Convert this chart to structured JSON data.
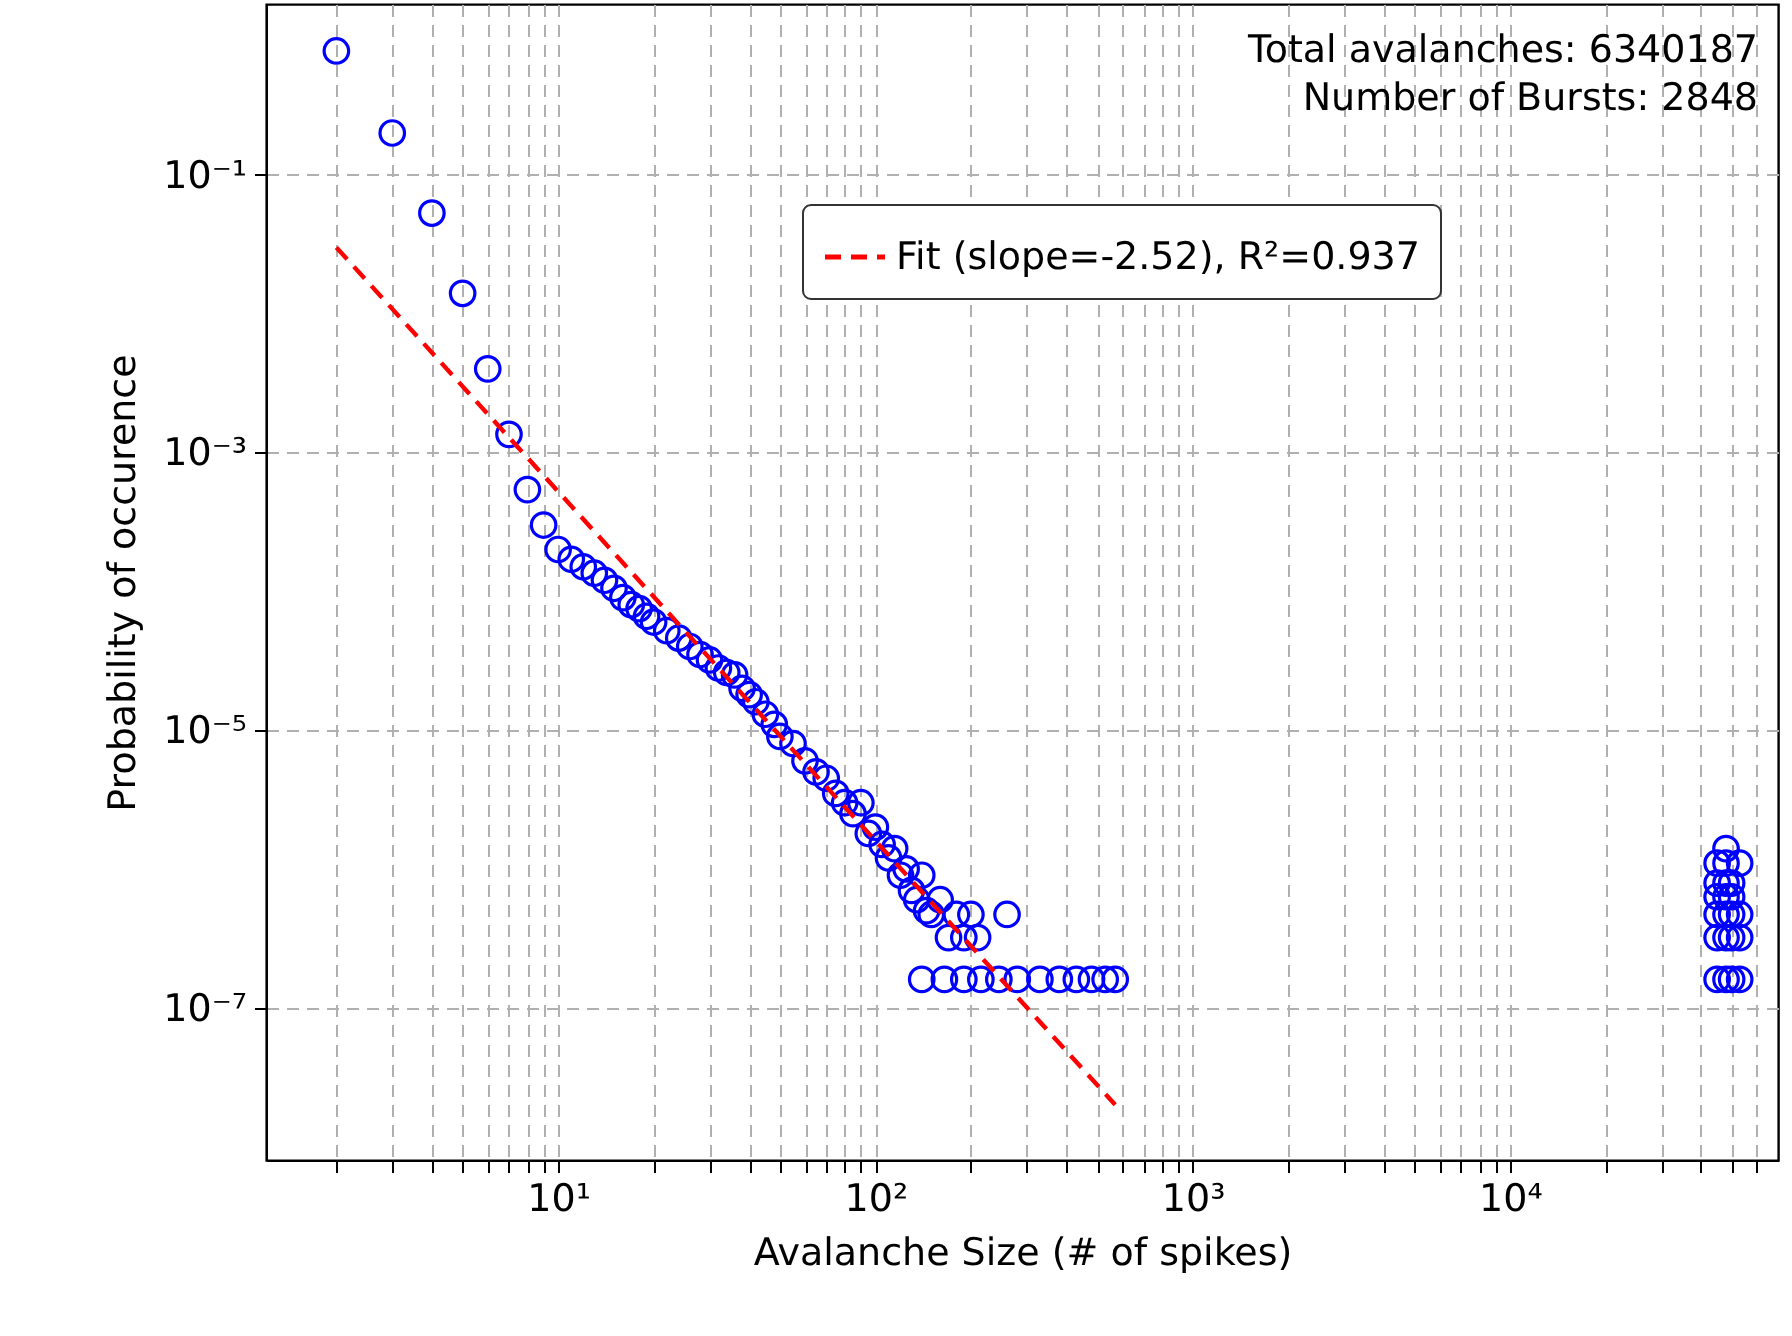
{
  "chart_data": {
    "type": "scatter",
    "xlabel": "Avalanche Size (# of spikes)",
    "ylabel": "Probability of occurence",
    "annotations": [
      "Total avalanches: 6340187",
      "Number of Bursts: 2848"
    ],
    "log": "xy",
    "grid": true,
    "legend": "top right",
    "marker": "circle",
    "xlim": [
      1.2,
      70000
    ],
    "ylim": [
      8e-09,
      1.7
    ],
    "xticks": [
      {
        "value": 10,
        "label": "10¹"
      },
      {
        "value": 100,
        "label": "10²"
      },
      {
        "value": 1000,
        "label": "10³"
      },
      {
        "value": 10000,
        "label": "10⁴"
      }
    ],
    "yticks": [
      {
        "value": 1e-07,
        "label": "10⁻⁷"
      },
      {
        "value": 1e-05,
        "label": "10⁻⁵"
      },
      {
        "value": 0.001,
        "label": "10⁻³"
      },
      {
        "value": 0.1,
        "label": "10⁻¹"
      }
    ],
    "series": [
      {
        "color": "#0000ff",
        "x": [
          2,
          3,
          4,
          5,
          6,
          7,
          8,
          9,
          10,
          11,
          12,
          13,
          14,
          15,
          16,
          17,
          18,
          19,
          20,
          22,
          24,
          26,
          28,
          30,
          32,
          34,
          36,
          38,
          40,
          42,
          45,
          48,
          50,
          55,
          60,
          65,
          70,
          75,
          80,
          85,
          90,
          95,
          100,
          105,
          110,
          115,
          120,
          125,
          130,
          135,
          140,
          145,
          150,
          160,
          170,
          180,
          190,
          200,
          210,
          260,
          140,
          165,
          190,
          215,
          245,
          280,
          330,
          380,
          430,
          480,
          530,
          570,
          45000,
          45000,
          45000,
          45000,
          45000,
          45000,
          48000,
          48000,
          48000,
          48000,
          48000,
          48000,
          48000,
          50000,
          50000,
          50000,
          50000,
          50000,
          53000,
          53000,
          53000,
          53000
        ],
        "values": [
          0.78,
          0.2,
          0.053,
          0.014,
          0.004,
          0.00135,
          0.00054,
          0.0003,
          0.0002,
          0.00017,
          0.00015,
          0.000135,
          0.00012,
          0.000105,
          9e-05,
          8e-05,
          7.5e-05,
          6.6e-05,
          6e-05,
          5.2e-05,
          4.6e-05,
          4e-05,
          3.5e-05,
          3.2e-05,
          2.8e-05,
          2.6e-05,
          2.5e-05,
          2e-05,
          1.8e-05,
          1.6e-05,
          1.3e-05,
          1.1e-05,
          9e-06,
          8e-06,
          6e-06,
          5e-06,
          4.5e-06,
          3.5e-06,
          3e-06,
          2.5e-06,
          3e-06,
          1.8e-06,
          2e-06,
          1.5e-06,
          1.2e-06,
          1.4e-06,
          9e-07,
          1e-06,
          7e-07,
          6e-07,
          9e-07,
          5e-07,
          4.7e-07,
          6e-07,
          3.2e-07,
          4.7e-07,
          3.2e-07,
          4.7e-07,
          3.2e-07,
          4.7e-07,
          1.6e-07,
          1.6e-07,
          1.6e-07,
          1.6e-07,
          1.6e-07,
          1.6e-07,
          1.6e-07,
          1.6e-07,
          1.6e-07,
          1.6e-07,
          1.6e-07,
          1.6e-07,
          1.6e-07,
          3.2e-07,
          4.7e-07,
          6.3e-07,
          7.9e-07,
          1.1e-06,
          1.6e-07,
          3.2e-07,
          4.7e-07,
          6.3e-07,
          7.9e-07,
          1.1e-06,
          1.4e-06,
          1.6e-07,
          3.2e-07,
          4.7e-07,
          6.3e-07,
          7.9e-07,
          1.6e-07,
          3.2e-07,
          4.7e-07,
          1.1e-06
        ]
      },
      {
        "type": "line",
        "name": "Fit (slope=-2.52), R²=0.937",
        "color": "#ff0000",
        "line_style": "dashed",
        "marker": "none",
        "x": [
          2,
          570
        ],
        "values": [
          0.03,
          2e-08
        ]
      }
    ]
  }
}
